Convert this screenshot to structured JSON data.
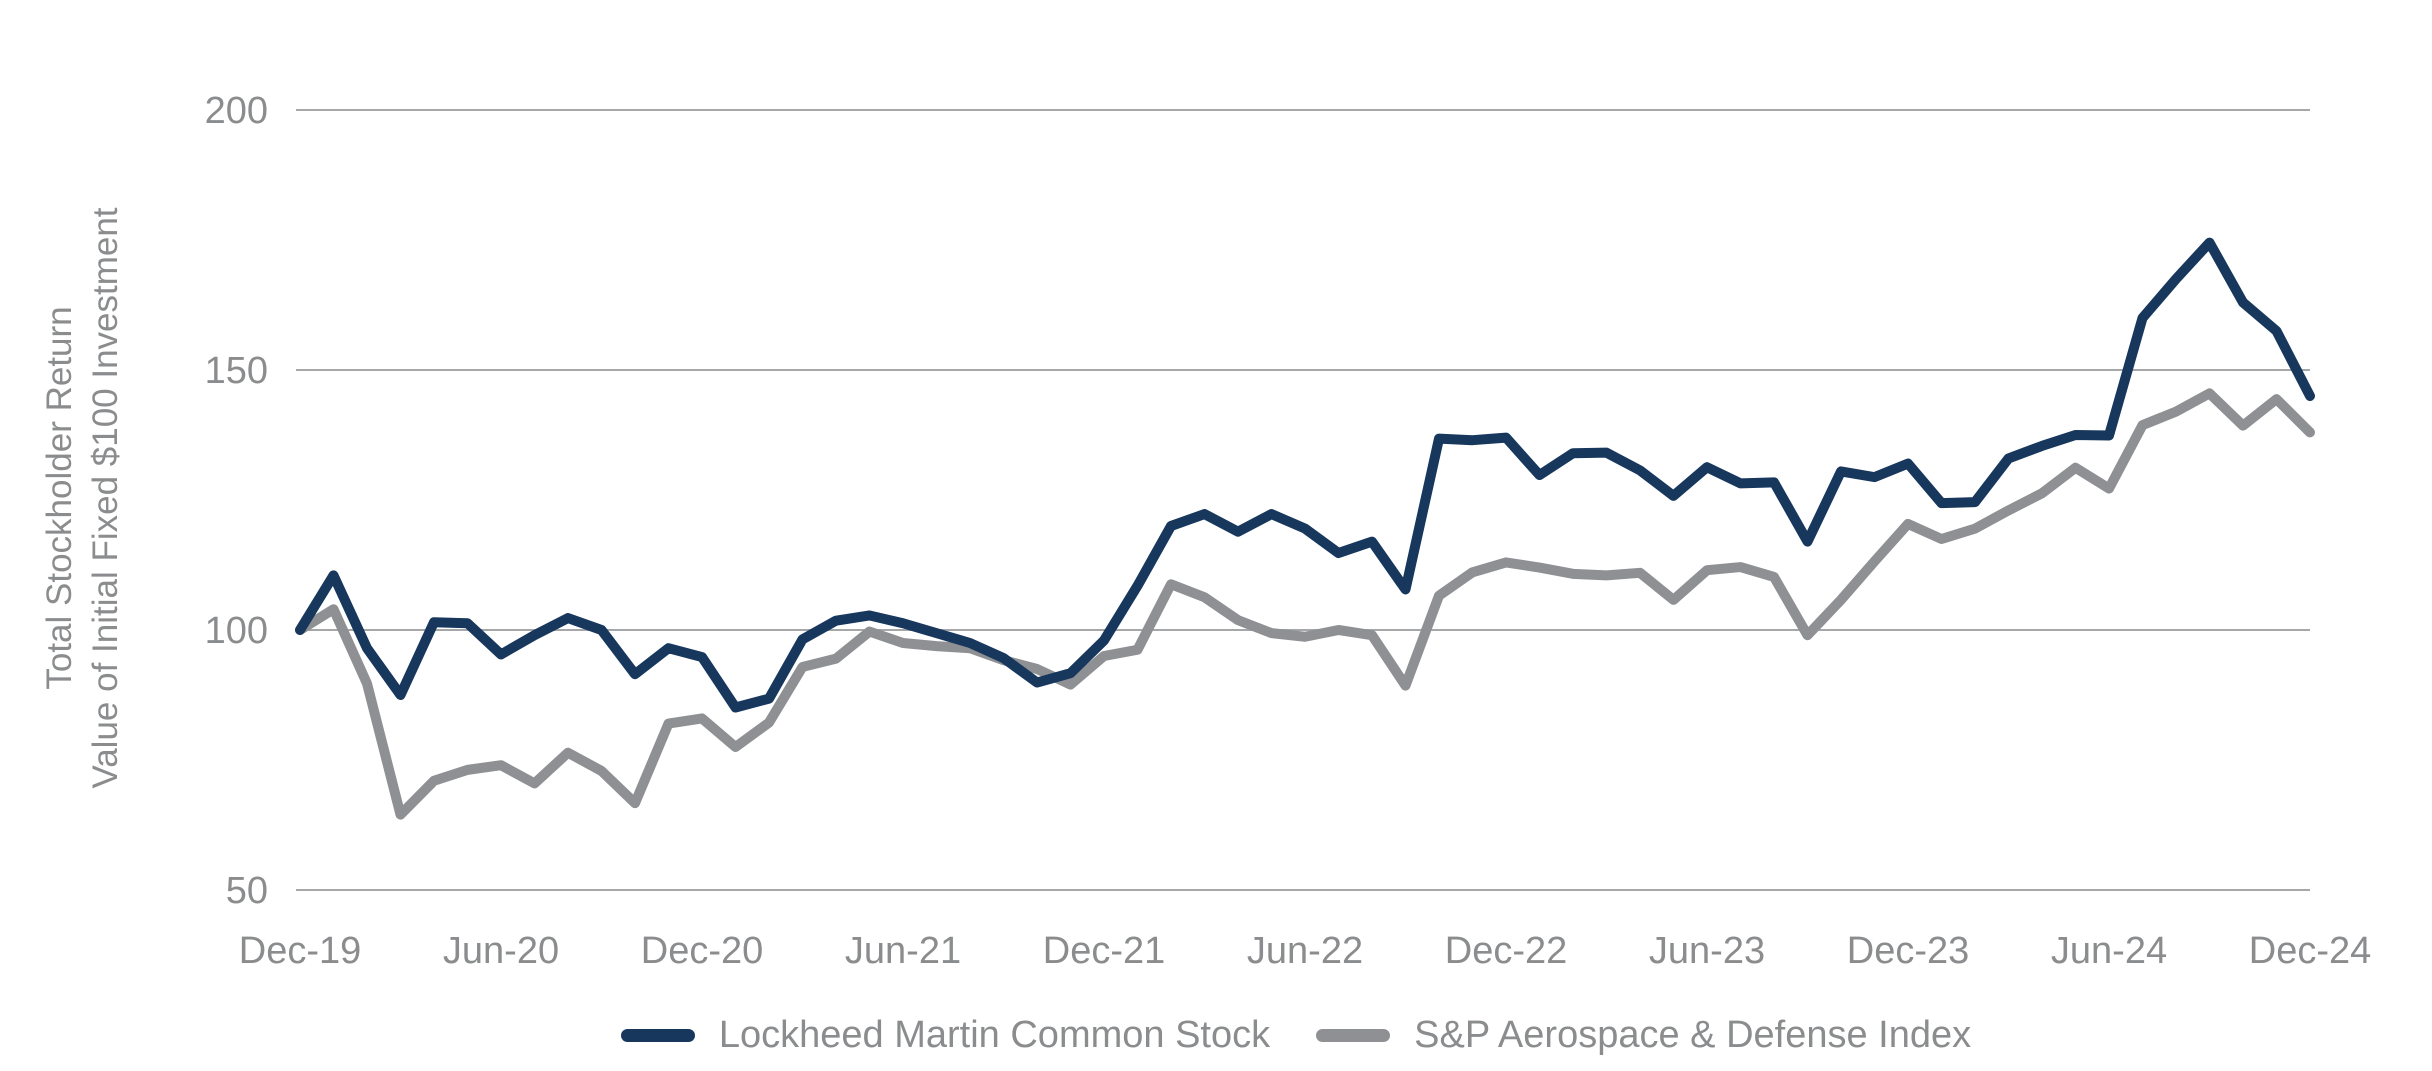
{
  "chart_data": {
    "type": "line",
    "y_axis_title_line1": "Total Stockholder Return",
    "y_axis_title_line2": "Value of Initial Fixed $100 Investment",
    "x_tick_labels": [
      "Dec-19",
      "Jun-20",
      "Dec-20",
      "Jun-21",
      "Dec-21",
      "Jun-22",
      "Dec-22",
      "Jun-23",
      "Dec-23",
      "Jun-24",
      "Dec-24"
    ],
    "points_per_x_tick": 6,
    "x_unit": "month",
    "y_ticks": [
      200,
      150,
      100,
      50
    ],
    "ylim": [
      50,
      200
    ],
    "grid": "horizontal",
    "legend_position": "bottom",
    "background_color": "#ffffff",
    "grid_color": "#a6a7a9",
    "text_color": "#8a8c8e",
    "series": [
      {
        "name": "Lockheed Martin Common Stock",
        "color": "#17375d",
        "values": [
          100,
          110.5,
          96.5,
          87.5,
          101.5,
          101.3,
          95.3,
          99,
          102.3,
          100,
          91.5,
          96.5,
          94.8,
          85.1,
          86.8,
          98.2,
          101.8,
          102.8,
          101.3,
          99.4,
          97.5,
          94.6,
          89.9,
          91.7,
          98,
          108.5,
          120,
          122.3,
          118.9,
          122.3,
          119.5,
          114.8,
          117,
          107.8,
          136.8,
          136.5,
          137,
          129.8,
          134,
          134.1,
          130.7,
          125.8,
          131.3,
          128.2,
          128.4,
          117,
          130.5,
          129.4,
          132,
          124.4,
          124.6,
          133,
          135.4,
          137.5,
          137.4,
          160,
          167.5,
          174.5,
          163,
          157.5,
          145
        ]
      },
      {
        "name": "S&P Aerospace & Defense Index",
        "color": "#8e9093",
        "values": [
          100,
          104,
          89.7,
          64.5,
          71,
          73.1,
          74,
          70.5,
          76.4,
          72.9,
          66.7,
          82,
          83,
          77.5,
          82.2,
          92.9,
          94.5,
          99.7,
          97.5,
          96.9,
          96.5,
          94.2,
          92.5,
          89.5,
          95,
          96.2,
          108.8,
          106.3,
          101.9,
          99.4,
          98.7,
          100,
          99,
          89.3,
          106.6,
          111.1,
          113,
          112,
          110.8,
          110.5,
          111,
          105.8,
          111.5,
          112.1,
          110.2,
          99,
          105.8,
          113.2,
          120.4,
          117.5,
          119.5,
          123,
          126.3,
          131.2,
          127.2,
          139.4,
          142,
          145.5,
          139.3,
          144.4,
          138
        ]
      }
    ]
  }
}
